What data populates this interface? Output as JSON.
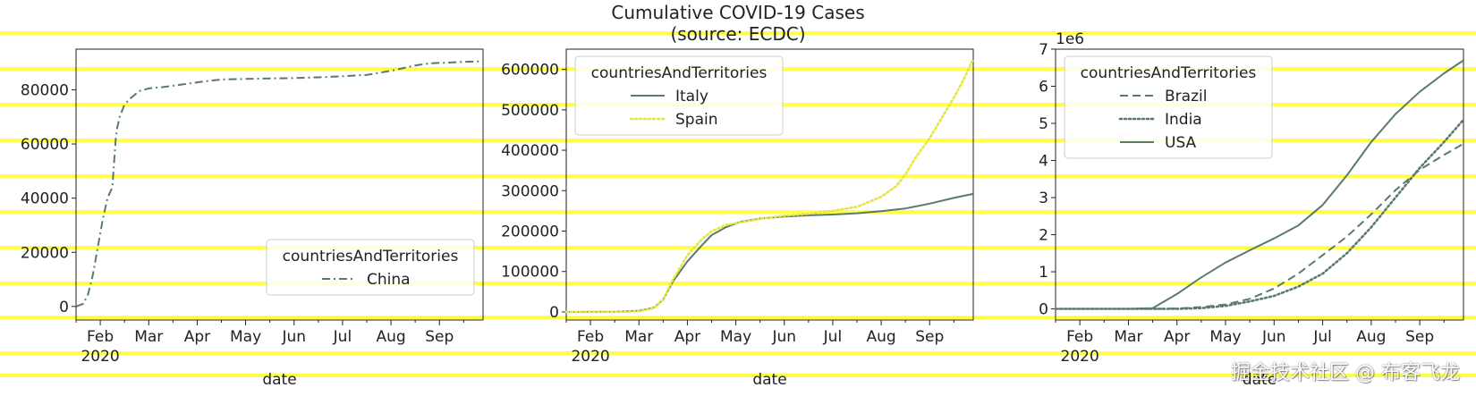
{
  "figure": {
    "title_line1": "Cumulative COVID-19 Cases",
    "title_line2": "(source: ECDC)",
    "watermark": "掘金技术社区 @ 布客飞龙",
    "stripe_color": "#ffff33",
    "line_color": "#5a7a6e",
    "spain_color": "#e6e640"
  },
  "chart_data": [
    {
      "type": "line",
      "xlabel": "date",
      "x_year_label": "2020",
      "x_ticks": [
        "Feb",
        "Mar",
        "Apr",
        "May",
        "Jun",
        "Jul",
        "Aug",
        "Sep"
      ],
      "y_ticks": [
        "0",
        "20000",
        "40000",
        "60000",
        "80000"
      ],
      "y_tick_values": [
        0,
        20000,
        40000,
        60000,
        80000
      ],
      "ylim": [
        -5000,
        95000
      ],
      "xlim": [
        0,
        8.4
      ],
      "legend_title": "countriesAndTerritories",
      "legend_loc": "lower-right",
      "series": [
        {
          "name": "China",
          "style": "dashdot",
          "x": [
            0,
            0.15,
            0.25,
            0.35,
            0.45,
            0.55,
            0.65,
            0.75,
            0.82,
            0.85,
            0.9,
            1.0,
            1.1,
            1.3,
            1.5,
            1.8,
            2.2,
            2.6,
            3.0,
            3.5,
            4.0,
            4.5,
            5.0,
            5.5,
            6.0,
            6.5,
            6.8,
            7.0,
            7.3,
            7.6,
            8.0,
            8.4
          ],
          "y": [
            0,
            1000,
            4500,
            12000,
            22000,
            32000,
            40000,
            44000,
            62000,
            66000,
            70000,
            74500,
            76500,
            79500,
            80500,
            81000,
            82000,
            83000,
            83800,
            84000,
            84200,
            84300,
            84600,
            85000,
            85500,
            87000,
            88200,
            89000,
            89800,
            90000,
            90300,
            90500
          ]
        }
      ]
    },
    {
      "type": "line",
      "xlabel": "date",
      "x_year_label": "2020",
      "x_ticks": [
        "Feb",
        "Mar",
        "Apr",
        "May",
        "Jun",
        "Jul",
        "Aug",
        "Sep"
      ],
      "y_ticks": [
        "0",
        "100000",
        "200000",
        "300000",
        "400000",
        "500000",
        "600000"
      ],
      "y_tick_values": [
        0,
        100000,
        200000,
        300000,
        400000,
        500000,
        600000
      ],
      "ylim": [
        -20000,
        650000
      ],
      "xlim": [
        0,
        8.4
      ],
      "legend_title": "countriesAndTerritories",
      "legend_loc": "upper-left",
      "series": [
        {
          "name": "Italy",
          "style": "solid",
          "x": [
            0,
            1.0,
            1.5,
            1.8,
            2.0,
            2.2,
            2.5,
            2.8,
            3.0,
            3.3,
            3.6,
            4.0,
            4.5,
            5.0,
            5.5,
            6.0,
            6.5,
            7.0,
            7.5,
            8.0,
            8.4
          ],
          "y": [
            0,
            500,
            3000,
            10000,
            30000,
            75000,
            125000,
            165000,
            190000,
            210000,
            223000,
            231000,
            236000,
            239000,
            241000,
            244000,
            249000,
            256000,
            268000,
            282000,
            292000
          ]
        },
        {
          "name": "Spain",
          "style": "dotted",
          "x": [
            0,
            1.0,
            1.5,
            1.8,
            2.0,
            2.2,
            2.5,
            2.8,
            3.0,
            3.3,
            3.6,
            4.0,
            4.5,
            5.0,
            5.5,
            6.0,
            6.5,
            6.8,
            7.0,
            7.2,
            7.5,
            7.8,
            8.0,
            8.2,
            8.4
          ],
          "y": [
            0,
            200,
            2000,
            9000,
            30000,
            80000,
            140000,
            180000,
            200000,
            215000,
            222000,
            230000,
            238000,
            243000,
            250000,
            260000,
            285000,
            310000,
            340000,
            380000,
            430000,
            490000,
            530000,
            575000,
            625000
          ]
        }
      ]
    },
    {
      "type": "line",
      "xlabel": "date",
      "x_year_label": "2020",
      "x_ticks": [
        "Feb",
        "Mar",
        "Apr",
        "May",
        "Jun",
        "Jul",
        "Aug",
        "Sep"
      ],
      "y_ticks": [
        "0",
        "1",
        "2",
        "3",
        "4",
        "5",
        "6",
        "7"
      ],
      "y_tick_values": [
        0,
        1,
        2,
        3,
        4,
        5,
        6,
        7
      ],
      "y_offset_label": "1e6",
      "ylim": [
        -0.3,
        7
      ],
      "xlim": [
        0,
        8.4
      ],
      "legend_title": "countriesAndTerritories",
      "legend_loc": "upper-left",
      "series": [
        {
          "name": "Brazil",
          "style": "dashed",
          "x": [
            0,
            2.0,
            2.5,
            3.0,
            3.5,
            4.0,
            4.5,
            5.0,
            5.5,
            6.0,
            6.5,
            7.0,
            7.5,
            8.0,
            8.4
          ],
          "y": [
            0,
            0,
            0.01,
            0.05,
            0.12,
            0.27,
            0.55,
            0.95,
            1.45,
            1.95,
            2.55,
            3.2,
            3.75,
            4.15,
            4.45
          ]
        },
        {
          "name": "India",
          "style": "dotted",
          "x": [
            0,
            2.5,
            3.0,
            3.5,
            4.0,
            4.5,
            5.0,
            5.5,
            6.0,
            6.5,
            7.0,
            7.5,
            8.0,
            8.4
          ],
          "y": [
            0,
            0,
            0.02,
            0.08,
            0.2,
            0.35,
            0.6,
            0.95,
            1.5,
            2.2,
            3.0,
            3.8,
            4.5,
            5.1
          ]
        },
        {
          "name": "USA",
          "style": "solid",
          "x": [
            0,
            1.5,
            2.0,
            2.5,
            3.0,
            3.5,
            4.0,
            4.5,
            5.0,
            5.5,
            6.0,
            6.5,
            7.0,
            7.5,
            8.0,
            8.4
          ],
          "y": [
            0,
            0,
            0.02,
            0.4,
            0.85,
            1.25,
            1.58,
            1.9,
            2.25,
            2.8,
            3.6,
            4.5,
            5.25,
            5.85,
            6.35,
            6.7
          ]
        }
      ]
    }
  ]
}
